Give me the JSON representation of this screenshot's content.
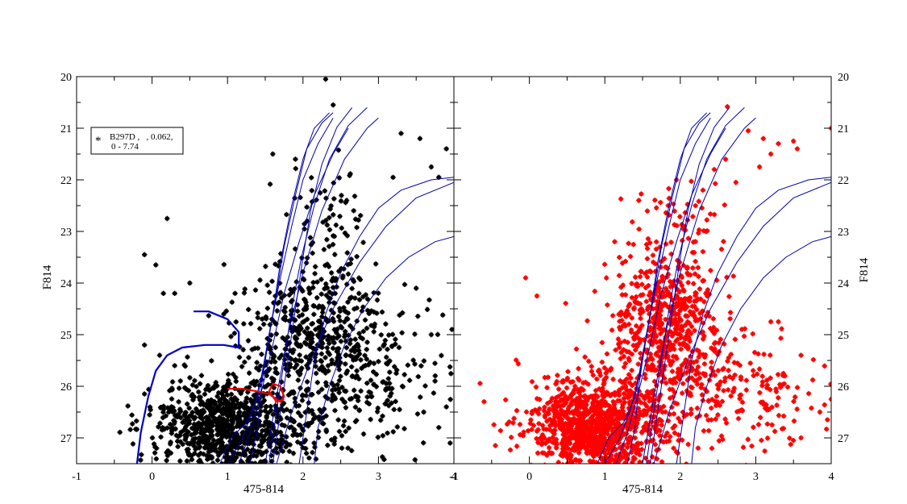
{
  "colors": {
    "left_points": "#000000",
    "right_points": "#ff0000",
    "isochrones": "#0000b0",
    "blue_track": "#0000cc",
    "red_track": "#ee0000",
    "axes": "#000000",
    "background": "#ffffff"
  },
  "chart_data": [
    {
      "type": "scatter",
      "panel": "left",
      "xlabel": "475-814",
      "ylabel": "F814",
      "xlim": [
        -1,
        4
      ],
      "ylim": [
        27.5,
        20
      ],
      "y_inverted": true,
      "x_ticks": [
        "-1",
        "0",
        "1",
        "2",
        "3",
        "4"
      ],
      "y_ticks": [
        "20",
        "21",
        "22",
        "23",
        "24",
        "25",
        "26",
        "27"
      ],
      "legend": {
        "line1": "B297D ,   , 0.062,",
        "line2": "0 - 7.74",
        "placement": "top-left",
        "marker": "*"
      },
      "series": [
        {
          "role": "observed stars",
          "color": "#000000",
          "marker": "asterisk",
          "clusters": [
            {
              "n": 900,
              "cx": 1.0,
              "cy": 26.8,
              "sx": 0.45,
              "sy": 0.45
            },
            {
              "n": 400,
              "cx": 2.15,
              "cy": 24.9,
              "sx": 0.45,
              "sy": 0.7
            },
            {
              "n": 260,
              "cx": 2.3,
              "cy": 26.0,
              "sx": 0.7,
              "sy": 0.7
            },
            {
              "n": 70,
              "cx": 2.4,
              "cy": 22.8,
              "sx": 0.3,
              "sy": 0.7
            },
            {
              "n": 60,
              "cx": 3.2,
              "cy": 25.5,
              "sx": 0.6,
              "sy": 0.8
            }
          ],
          "points": [
            [
              2.3,
              20.05
            ],
            [
              2.4,
              20.55
            ],
            [
              0.2,
              22.75
            ],
            [
              -0.1,
              23.45
            ],
            [
              0.05,
              23.65
            ],
            [
              0.15,
              24.2
            ],
            [
              0.3,
              24.2
            ],
            [
              0.5,
              24.0
            ],
            [
              0.95,
              24.6
            ],
            [
              1.1,
              24.2
            ],
            [
              -0.1,
              25.2
            ],
            [
              0.1,
              25.4
            ],
            [
              -0.1,
              26.15
            ],
            [
              0.3,
              25.6
            ],
            [
              3.3,
              21.1
            ],
            [
              3.55,
              21.2
            ],
            [
              3.9,
              21.4
            ],
            [
              3.7,
              21.75
            ],
            [
              3.8,
              21.95
            ],
            [
              1.6,
              21.5
            ],
            [
              1.9,
              21.6
            ],
            [
              3.5,
              24.1
            ],
            [
              3.7,
              25.0
            ],
            [
              3.75,
              25.9
            ],
            [
              3.6,
              26.5
            ],
            [
              3.95,
              27.1
            ],
            [
              3.8,
              26.8
            ],
            [
              3.9,
              26.4
            ]
          ]
        },
        {
          "role": "blue track",
          "color": "#0000cc",
          "points": [
            [
              -0.2,
              27.5
            ],
            [
              -0.15,
              26.9
            ],
            [
              -0.05,
              26.2
            ],
            [
              0.05,
              25.7
            ],
            [
              0.2,
              25.4
            ],
            [
              0.4,
              25.25
            ],
            [
              0.7,
              25.2
            ],
            [
              0.95,
              25.2
            ],
            [
              1.15,
              25.25
            ],
            [
              1.15,
              24.95
            ],
            [
              1.0,
              24.7
            ],
            [
              0.75,
              24.55
            ],
            [
              0.55,
              24.55
            ]
          ]
        },
        {
          "role": "red track",
          "color": "#ee0000",
          "points": [
            [
              1.0,
              26.05
            ],
            [
              1.2,
              26.05
            ],
            [
              1.4,
              26.1
            ],
            [
              1.55,
              26.15
            ],
            [
              1.7,
              26.3
            ],
            [
              1.75,
              26.2
            ],
            [
              1.7,
              26.0
            ],
            [
              1.6,
              25.95
            ],
            [
              1.55,
              26.1
            ],
            [
              1.65,
              26.3
            ],
            [
              1.75,
              26.25
            ]
          ]
        }
      ]
    },
    {
      "type": "scatter",
      "panel": "right",
      "xlabel": "475-814",
      "ylabel": "F814",
      "xlim": [
        -1,
        4
      ],
      "ylim": [
        27.5,
        20
      ],
      "y_inverted": true,
      "x_ticks": [
        "-1",
        "0",
        "1",
        "2",
        "3",
        "4"
      ],
      "y_ticks": [
        "20",
        "21",
        "22",
        "23",
        "24",
        "25",
        "26",
        "27"
      ],
      "series": [
        {
          "role": "model stars",
          "color": "#ff0000",
          "marker": "asterisk",
          "clusters": [
            {
              "n": 1100,
              "cx": 0.9,
              "cy": 26.8,
              "sx": 0.45,
              "sy": 0.45
            },
            {
              "n": 500,
              "cx": 1.8,
              "cy": 24.8,
              "sx": 0.35,
              "sy": 0.65
            },
            {
              "n": 250,
              "cx": 2.2,
              "cy": 26.1,
              "sx": 0.7,
              "sy": 0.6
            },
            {
              "n": 70,
              "cx": 2.0,
              "cy": 23.0,
              "sx": 0.35,
              "sy": 0.6
            },
            {
              "n": 40,
              "cx": 3.3,
              "cy": 26.3,
              "sx": 0.4,
              "sy": 0.5
            }
          ],
          "points": [
            [
              2.9,
              21.05
            ],
            [
              3.1,
              21.2
            ],
            [
              3.3,
              21.3
            ],
            [
              3.5,
              21.25
            ],
            [
              3.55,
              21.4
            ],
            [
              3.2,
              21.5
            ],
            [
              3.05,
              21.75
            ],
            [
              4.0,
              21.0
            ],
            [
              2.6,
              21.6
            ],
            [
              2.45,
              21.8
            ],
            [
              2.3,
              22.2
            ],
            [
              1.45,
              22.4
            ],
            [
              1.95,
              22.0
            ],
            [
              -0.05,
              23.9
            ],
            [
              0.1,
              24.25
            ],
            [
              -0.6,
              26.3
            ],
            [
              -0.45,
              27.15
            ],
            [
              3.3,
              24.75
            ],
            [
              3.2,
              24.75
            ],
            [
              3.6,
              25.4
            ],
            [
              3.85,
              26.5
            ],
            [
              3.95,
              26.65
            ],
            [
              3.5,
              27.05
            ],
            [
              3.6,
              27.0
            ],
            [
              4.0,
              26.25
            ]
          ]
        }
      ]
    }
  ],
  "isochrones": [
    [
      [
        1.6,
        27.5
      ],
      [
        1.7,
        26.5
      ],
      [
        1.8,
        25.5
      ],
      [
        1.9,
        24.5
      ],
      [
        2.0,
        23.5
      ],
      [
        2.1,
        22.6
      ],
      [
        2.25,
        21.7
      ],
      [
        2.45,
        20.98
      ],
      [
        2.65,
        20.6
      ]
    ],
    [
      [
        1.55,
        27.5
      ],
      [
        1.65,
        26.5
      ],
      [
        1.75,
        25.5
      ],
      [
        1.85,
        24.5
      ],
      [
        1.98,
        23.5
      ],
      [
        2.15,
        22.5
      ],
      [
        2.35,
        21.6
      ],
      [
        2.6,
        20.95
      ],
      [
        2.85,
        20.6
      ]
    ],
    [
      [
        1.5,
        27.5
      ],
      [
        1.65,
        26.2
      ],
      [
        1.8,
        25.0
      ],
      [
        2.0,
        23.8
      ],
      [
        2.25,
        22.6
      ],
      [
        2.55,
        21.6
      ],
      [
        2.85,
        21.0
      ],
      [
        3.0,
        20.8
      ]
    ],
    [
      [
        1.95,
        27.5
      ],
      [
        2.05,
        26.5
      ],
      [
        2.15,
        25.5
      ],
      [
        2.3,
        24.6
      ],
      [
        2.5,
        23.8
      ],
      [
        2.75,
        23.1
      ],
      [
        3.0,
        22.55
      ],
      [
        3.3,
        22.2
      ],
      [
        3.7,
        22.0
      ],
      [
        4.0,
        21.95
      ]
    ],
    [
      [
        1.65,
        27.5
      ],
      [
        1.85,
        26.5
      ],
      [
        2.1,
        25.5
      ],
      [
        2.4,
        24.5
      ],
      [
        2.75,
        23.6
      ],
      [
        3.1,
        22.9
      ],
      [
        3.5,
        22.35
      ],
      [
        4.0,
        22.05
      ]
    ],
    [
      [
        2.15,
        27.5
      ],
      [
        2.2,
        26.8
      ],
      [
        2.35,
        26.0
      ],
      [
        2.55,
        25.2
      ],
      [
        2.8,
        24.5
      ],
      [
        3.1,
        23.9
      ],
      [
        3.4,
        23.5
      ],
      [
        3.75,
        23.2
      ],
      [
        4.0,
        23.1
      ]
    ],
    [
      [
        1.0,
        27.5
      ],
      [
        1.2,
        27.0
      ],
      [
        1.35,
        26.4
      ],
      [
        1.45,
        25.8
      ],
      [
        1.55,
        25.0
      ],
      [
        1.65,
        24.2
      ],
      [
        1.75,
        23.3
      ],
      [
        1.9,
        22.3
      ],
      [
        2.05,
        21.4
      ],
      [
        2.25,
        20.9
      ],
      [
        2.4,
        20.7
      ]
    ],
    [
      [
        0.9,
        27.5
      ],
      [
        1.05,
        27.0
      ],
      [
        1.25,
        26.7
      ],
      [
        1.4,
        26.2
      ],
      [
        1.5,
        25.5
      ],
      [
        1.6,
        24.6
      ],
      [
        1.7,
        23.6
      ],
      [
        1.85,
        22.5
      ],
      [
        2.0,
        21.6
      ],
      [
        2.15,
        21.0
      ],
      [
        2.35,
        20.7
      ]
    ],
    [
      [
        1.3,
        27.5
      ],
      [
        1.4,
        26.8
      ],
      [
        1.45,
        26.0
      ],
      [
        1.55,
        25.0
      ],
      [
        1.7,
        23.9
      ],
      [
        1.85,
        22.9
      ],
      [
        2.0,
        22.0
      ],
      [
        2.2,
        21.3
      ],
      [
        2.4,
        20.8
      ]
    ],
    [
      [
        1.15,
        27.5
      ],
      [
        1.3,
        26.9
      ],
      [
        1.45,
        26.1
      ],
      [
        1.6,
        25.2
      ],
      [
        1.75,
        24.2
      ],
      [
        1.95,
        23.2
      ],
      [
        2.15,
        22.3
      ],
      [
        2.4,
        21.5
      ],
      [
        2.6,
        21.0
      ]
    ]
  ]
}
